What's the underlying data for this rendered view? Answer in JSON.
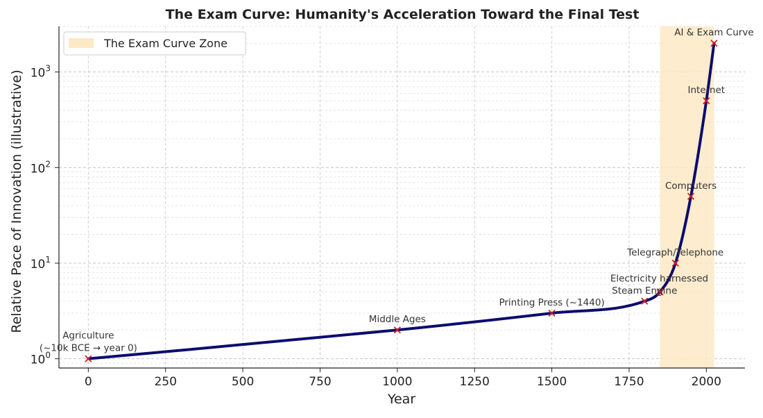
{
  "chart_data": {
    "type": "line",
    "title": "The Exam Curve: Humanity's Acceleration Toward the Final Test",
    "xlabel": "Year",
    "ylabel": "Relative Pace of Innovation (illustrative)",
    "y_scale": "log",
    "xlim": [
      -95,
      2125
    ],
    "ylim": [
      0.8,
      3000
    ],
    "x_ticks": [
      0,
      250,
      500,
      750,
      1000,
      1250,
      1500,
      1750,
      2000
    ],
    "y_ticks": [
      {
        "value": 1,
        "base": "10",
        "exp": "0"
      },
      {
        "value": 10,
        "base": "10",
        "exp": "1"
      },
      {
        "value": 100,
        "base": "10",
        "exp": "2"
      },
      {
        "value": 1000,
        "base": "10",
        "exp": "3"
      }
    ],
    "grid": true,
    "line_color": "#0c0c6e",
    "marker_color": "#cc2222",
    "zone_color": "#fde9c6",
    "legend": {
      "position": "top-left",
      "label": "The Exam Curve Zone"
    },
    "shaded_zone": {
      "x_start": 1850,
      "x_end": 2025
    },
    "series": [
      {
        "x": [
          0,
          1000,
          1500,
          1800,
          1850,
          1900,
          1950,
          2000,
          2025
        ],
        "y": [
          1,
          2,
          3,
          4,
          5,
          10,
          50,
          500,
          2000
        ]
      }
    ],
    "annotations": [
      {
        "text": "Agriculture",
        "x": 0,
        "y": 1
      },
      {
        "text": "(~10k BCE → year 0)",
        "x": 0,
        "y": 1
      },
      {
        "text": "Middle Ages",
        "x": 1000,
        "y": 2
      },
      {
        "text": "Printing Press (~1440)",
        "x": 1500,
        "y": 3
      },
      {
        "text": "Steam Engine",
        "x": 1800,
        "y": 4
      },
      {
        "text": "Electricity harnessed",
        "x": 1850,
        "y": 5
      },
      {
        "text": "Telegraph/Telephone",
        "x": 1900,
        "y": 10
      },
      {
        "text": "Computers",
        "x": 1950,
        "y": 50
      },
      {
        "text": "Internet",
        "x": 2000,
        "y": 500
      },
      {
        "text": "AI & Exam Curve",
        "x": 2025,
        "y": 2000
      }
    ]
  }
}
